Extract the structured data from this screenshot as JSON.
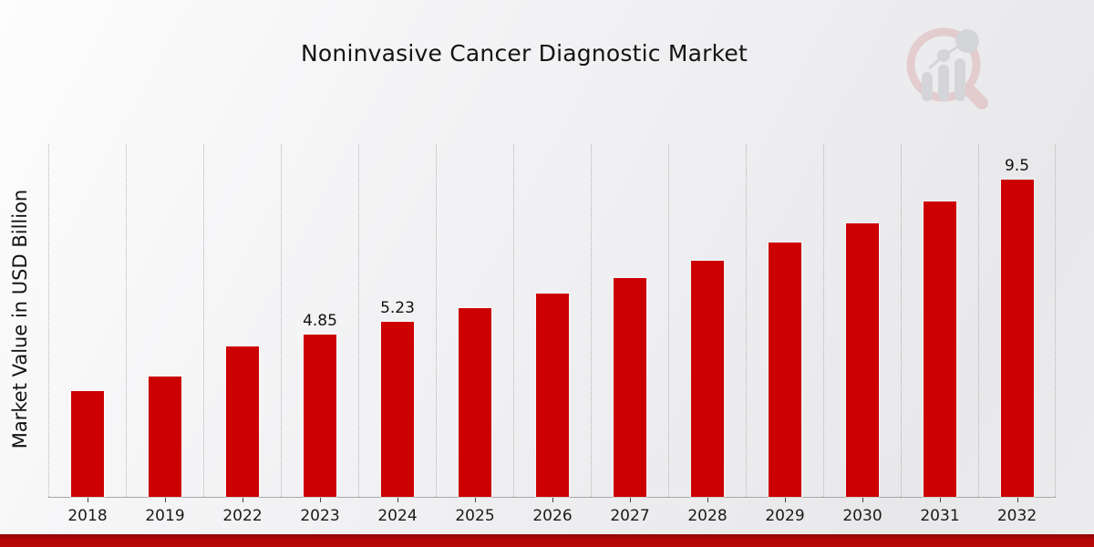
{
  "title": "Noninvasive Cancer Diagnostic Market",
  "watermark": {
    "icon": "magnifier-bar-chart-logo"
  },
  "footer": {
    "accent_color": "#b50707"
  },
  "chart_data": {
    "type": "bar",
    "title": "Noninvasive Cancer Diagnostic Market",
    "xlabel": "",
    "ylabel": "Market Value in USD Billion",
    "categories": [
      "2018",
      "2019",
      "2022",
      "2023",
      "2024",
      "2025",
      "2026",
      "2027",
      "2028",
      "2029",
      "2030",
      "2031",
      "2032"
    ],
    "values": [
      3.15,
      3.6,
      4.5,
      4.85,
      5.23,
      5.63,
      6.07,
      6.54,
      7.05,
      7.6,
      8.18,
      8.82,
      9.5
    ],
    "data_labels": [
      "",
      "",
      "",
      "4.85",
      "5.23",
      "",
      "",
      "",
      "",
      "",
      "",
      "",
      "9.5"
    ],
    "bar_color": "#cc0000",
    "ylim": [
      0,
      10.55
    ],
    "grid": "vertical-dotted",
    "legend": "none"
  }
}
